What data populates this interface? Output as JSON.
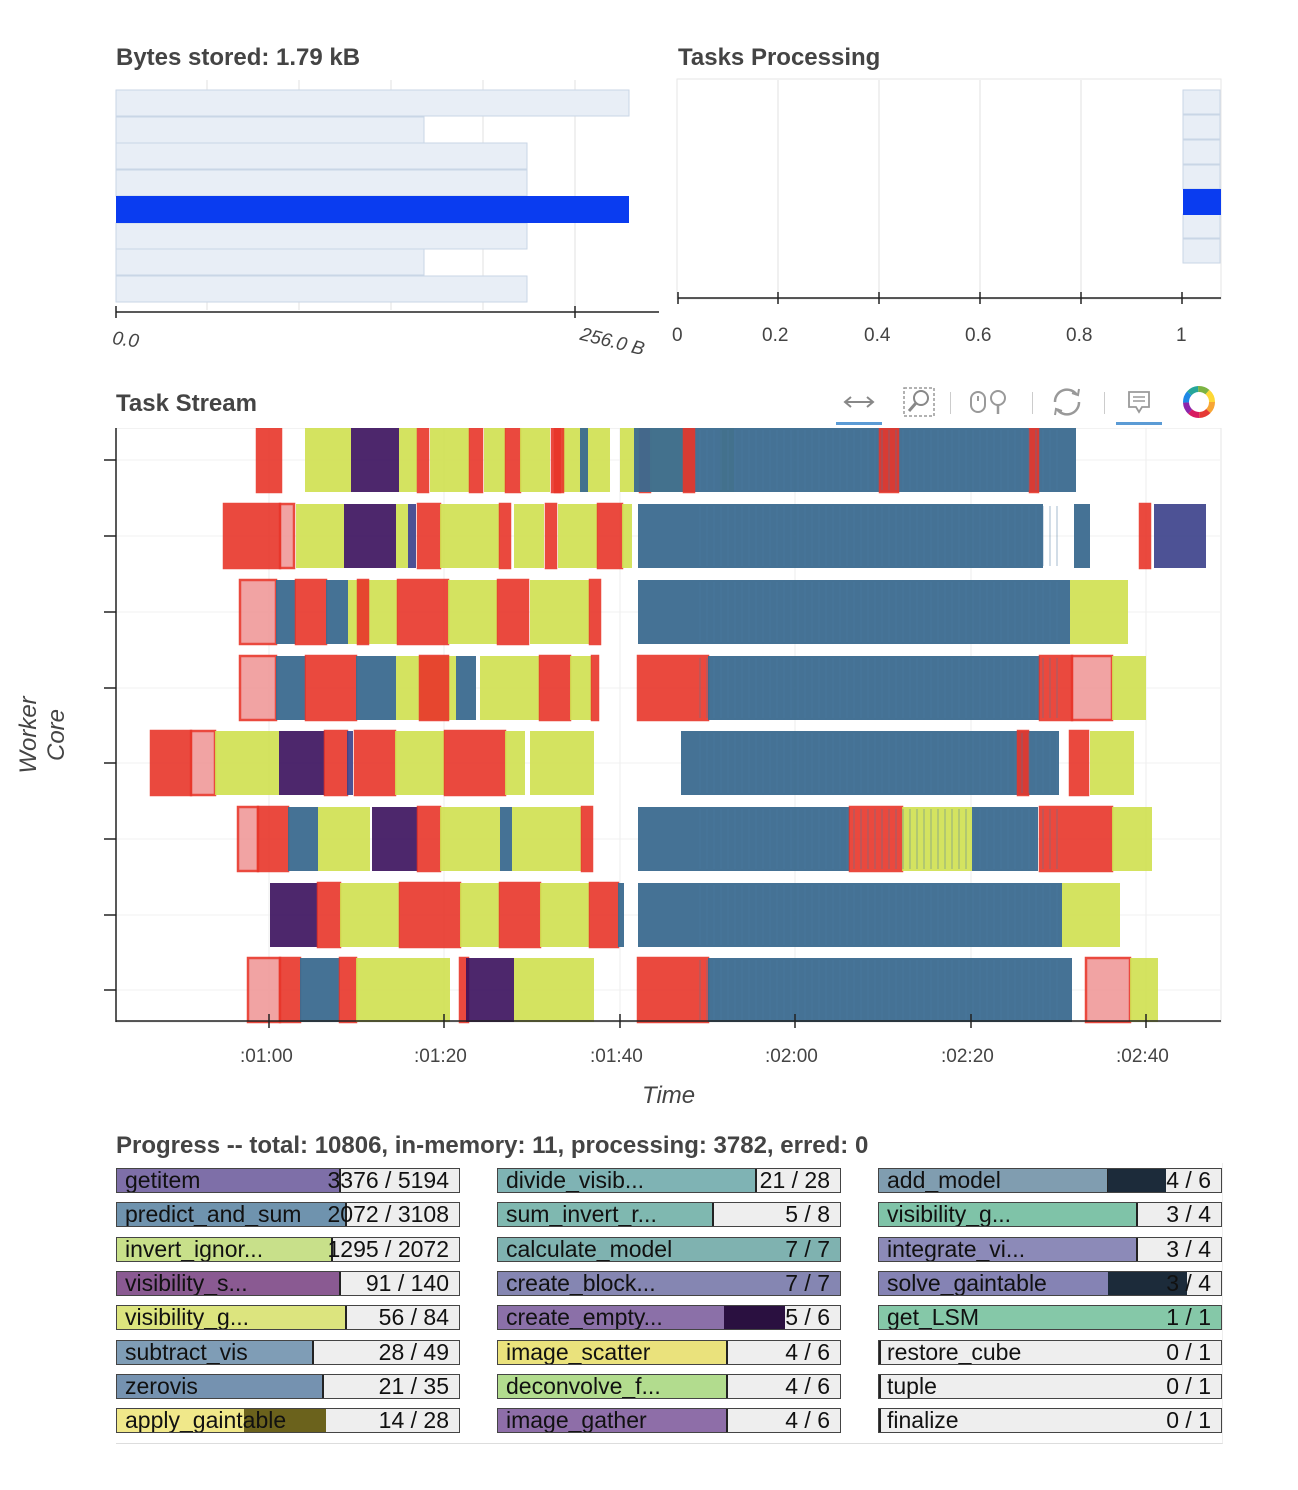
{
  "bytes_stored": {
    "title": "Bytes stored: 1.79 kB",
    "tick_labels": [
      "0.0",
      "256.0 B"
    ]
  },
  "tasks_processing": {
    "title": "Tasks Processing",
    "tick_labels": [
      "0",
      "0.2",
      "0.4",
      "0.6",
      "0.8",
      "1"
    ]
  },
  "task_stream": {
    "title": "Task Stream",
    "ylabel": "Worker Core",
    "xlabel": "Time",
    "tick_labels": [
      ":01:00",
      ":01:20",
      ":01:40",
      ":02:00",
      ":02:20",
      ":02:40"
    ],
    "toolbar": [
      "pan-icon",
      "box-zoom-icon",
      "wheel-zoom-icon",
      "reset-icon",
      "hover-icon",
      "bokeh-logo-icon"
    ]
  },
  "progress": {
    "title": "Progress -- total: 10806, in-memory: 11, processing: 3782, erred: 0",
    "columns": [
      [
        {
          "name": "getitem",
          "done": 3376,
          "total": 5194,
          "label": "3376 / 5194",
          "color": "#7e6fa8"
        },
        {
          "name": "predict_and_sum",
          "done": 2072,
          "total": 3108,
          "label": "2072 / 3108",
          "color": "#6f93ae"
        },
        {
          "name": "invert_ignor...",
          "done": 1295,
          "total": 2072,
          "label": "1295 / 2072",
          "color": "#c8e08a"
        },
        {
          "name": "visibility_s...",
          "done": 91,
          "total": 140,
          "label": "91 / 140",
          "color": "#8a5a92"
        },
        {
          "name": "visibility_g...",
          "done": 56,
          "total": 84,
          "label": "56 / 84",
          "color": "#dce47e"
        },
        {
          "name": "subtract_vis",
          "done": 28,
          "total": 49,
          "label": "28 / 49",
          "color": "#7f9db6"
        },
        {
          "name": "zerovis",
          "done": 21,
          "total": 35,
          "label": "21 / 35",
          "color": "#7592b0"
        },
        {
          "name": "apply_gaintable",
          "done": 14,
          "total": 28,
          "label": "14 / 28",
          "color": "#f0e88a"
        }
      ],
      [
        {
          "name": "divide_visib...",
          "done": 21,
          "total": 28,
          "label": "21 / 28",
          "color": "#7fb3b4"
        },
        {
          "name": "sum_invert_r...",
          "done": 5,
          "total": 8,
          "label": "5 / 8",
          "color": "#7fb8b0"
        },
        {
          "name": "calculate_model",
          "done": 7,
          "total": 7,
          "label": "7 / 7",
          "color": "#7fb2b0"
        },
        {
          "name": "create_block...",
          "done": 7,
          "total": 7,
          "label": "7 / 7",
          "color": "#8586b2"
        },
        {
          "name": "create_empty...",
          "done": 5,
          "total": 6,
          "label": "5 / 6",
          "color": "#8b70a8"
        },
        {
          "name": "image_scatter",
          "done": 4,
          "total": 6,
          "label": "4 / 6",
          "color": "#eae27c"
        },
        {
          "name": "deconvolve_f...",
          "done": 4,
          "total": 6,
          "label": "4 / 6",
          "color": "#b2dc8e"
        },
        {
          "name": "image_gather",
          "done": 4,
          "total": 6,
          "label": "4 / 6",
          "color": "#8e6ea8"
        }
      ],
      [
        {
          "name": "add_model",
          "done": 4,
          "total": 6,
          "label": "4 / 6",
          "color": "#809db0"
        },
        {
          "name": "visibility_g...",
          "done": 3,
          "total": 4,
          "label": "3 / 4",
          "color": "#7fc3a8"
        },
        {
          "name": "integrate_vi...",
          "done": 3,
          "total": 4,
          "label": "3 / 4",
          "color": "#8c8ab8"
        },
        {
          "name": "solve_gaintable",
          "done": 3,
          "total": 4,
          "label": "3 / 4",
          "color": "#8583b4"
        },
        {
          "name": "get_LSM",
          "done": 1,
          "total": 1,
          "label": "1 / 1",
          "color": "#85c8a8"
        },
        {
          "name": "restore_cube",
          "done": 0,
          "total": 1,
          "label": "0 / 1",
          "color": "#cccccc"
        },
        {
          "name": "tuple",
          "done": 0,
          "total": 1,
          "label": "0 / 1",
          "color": "#cccccc"
        },
        {
          "name": "finalize",
          "done": 0,
          "total": 1,
          "label": "0 / 1",
          "color": "#cccccc"
        }
      ]
    ]
  }
}
